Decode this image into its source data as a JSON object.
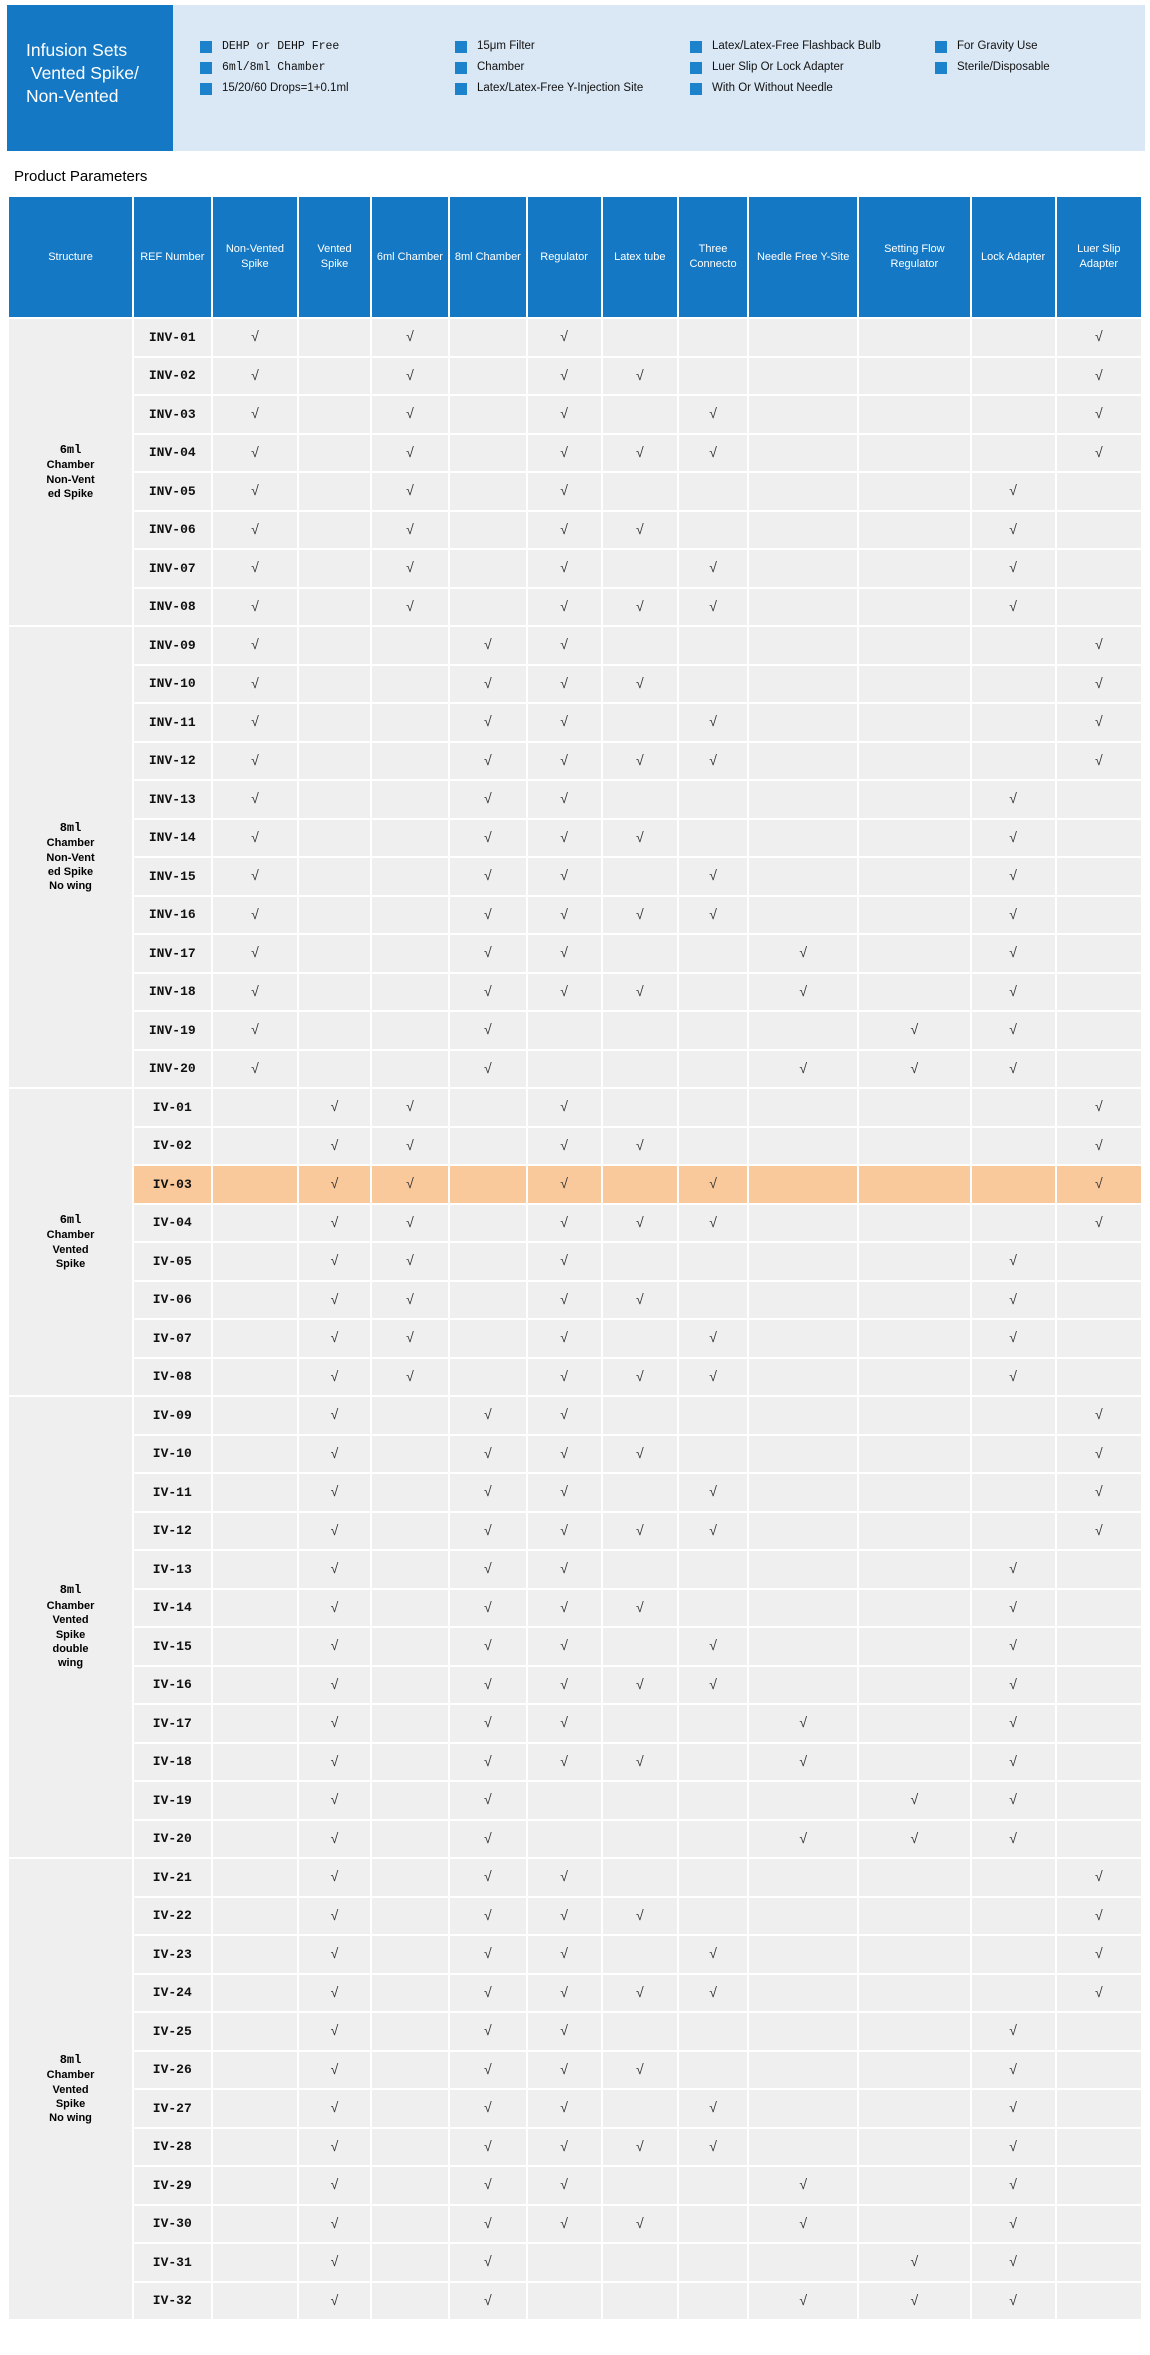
{
  "banner": {
    "title_lines": [
      "Infusion Sets",
      " Vented Spike/",
      "Non-Vented"
    ],
    "feature_columns": [
      [
        {
          "text": "DEHP or DEHP Free",
          "mono": true
        },
        {
          "text": "6ml/8ml Chamber",
          "mono": true
        },
        {
          "text": "15/20/60 Drops=1+0.1ml",
          "mono": false
        }
      ],
      [
        {
          "text": "15μm Filter",
          "mono": false
        },
        {
          "text": "Chamber",
          "mono": false
        },
        {
          "text": "Latex/Latex-Free Y-Injection Site",
          "mono": false
        }
      ],
      [
        {
          "text": "Latex/Latex-Free Flashback Bulb",
          "mono": false
        },
        {
          "text": "Luer Slip Or Lock Adapter",
          "mono": false
        },
        {
          "text": "With Or Without Needle",
          "mono": false
        }
      ],
      [
        {
          "text": "For Gravity Use",
          "mono": false
        },
        {
          "text": "Sterile/Disposable",
          "mono": false
        }
      ]
    ]
  },
  "page": {
    "heading": "Product Parameters"
  },
  "colors": {
    "banner_blue": "#1478C4",
    "panel_blue": "#DAE7F4",
    "bullet_blue": "#1C82CC",
    "row_gray": "#F0EFEF",
    "highlight_orange": "#F9C89B"
  },
  "table": {
    "check_glyph": "√",
    "columns": [
      {
        "key": "structure",
        "label": "Structure"
      },
      {
        "key": "ref",
        "label": "REF Number"
      },
      {
        "key": "nv",
        "label": "Non-Vented Spike"
      },
      {
        "key": "v",
        "label": "Vented Spike"
      },
      {
        "key": "c6",
        "label": "6ml Chamber"
      },
      {
        "key": "c8",
        "label": "8ml Chamber"
      },
      {
        "key": "reg",
        "label": "Regulator"
      },
      {
        "key": "lat",
        "label": "Latex tube"
      },
      {
        "key": "thr",
        "label": "Three Connecto"
      },
      {
        "key": "nfy",
        "label": "Needle Free Y-Site"
      },
      {
        "key": "sfr",
        "label": "Setting Flow Regulator"
      },
      {
        "key": "lock",
        "label": "Lock Adapter"
      },
      {
        "key": "luer",
        "label": "Luer Slip Adapter"
      }
    ],
    "feature_keys": [
      "nv",
      "v",
      "c6",
      "c8",
      "reg",
      "lat",
      "thr",
      "nfy",
      "sfr",
      "lock",
      "luer"
    ],
    "sections": [
      {
        "structure_lines": [
          "6ml",
          "Chamber",
          "Non-Vent",
          "ed Spike"
        ],
        "rows": [
          {
            "ref": "INV-01",
            "checks": [
              "nv",
              "c6",
              "reg",
              "luer"
            ]
          },
          {
            "ref": "INV-02",
            "checks": [
              "nv",
              "c6",
              "reg",
              "lat",
              "luer"
            ]
          },
          {
            "ref": "INV-03",
            "checks": [
              "nv",
              "c6",
              "reg",
              "thr",
              "luer"
            ]
          },
          {
            "ref": "INV-04",
            "checks": [
              "nv",
              "c6",
              "reg",
              "lat",
              "thr",
              "luer"
            ]
          },
          {
            "ref": "INV-05",
            "checks": [
              "nv",
              "c6",
              "reg",
              "lock"
            ]
          },
          {
            "ref": "INV-06",
            "checks": [
              "nv",
              "c6",
              "reg",
              "lat",
              "lock"
            ]
          },
          {
            "ref": "INV-07",
            "checks": [
              "nv",
              "c6",
              "reg",
              "thr",
              "lock"
            ]
          },
          {
            "ref": "INV-08",
            "checks": [
              "nv",
              "c6",
              "reg",
              "lat",
              "thr",
              "lock"
            ]
          }
        ]
      },
      {
        "structure_lines": [
          "8ml",
          "Chamber",
          "Non-Vent",
          "ed Spike",
          "No wing"
        ],
        "rows": [
          {
            "ref": "INV-09",
            "checks": [
              "nv",
              "c8",
              "reg",
              "luer"
            ]
          },
          {
            "ref": "INV-10",
            "checks": [
              "nv",
              "c8",
              "reg",
              "lat",
              "luer"
            ]
          },
          {
            "ref": "INV-11",
            "checks": [
              "nv",
              "c8",
              "reg",
              "thr",
              "luer"
            ]
          },
          {
            "ref": "INV-12",
            "checks": [
              "nv",
              "c8",
              "reg",
              "lat",
              "thr",
              "luer"
            ]
          },
          {
            "ref": "INV-13",
            "checks": [
              "nv",
              "c8",
              "reg",
              "lock"
            ]
          },
          {
            "ref": "INV-14",
            "checks": [
              "nv",
              "c8",
              "reg",
              "lat",
              "lock"
            ]
          },
          {
            "ref": "INV-15",
            "checks": [
              "nv",
              "c8",
              "reg",
              "thr",
              "lock"
            ]
          },
          {
            "ref": "INV-16",
            "checks": [
              "nv",
              "c8",
              "reg",
              "lat",
              "thr",
              "lock"
            ]
          },
          {
            "ref": "INV-17",
            "checks": [
              "nv",
              "c8",
              "reg",
              "nfy",
              "lock"
            ]
          },
          {
            "ref": "INV-18",
            "checks": [
              "nv",
              "c8",
              "reg",
              "lat",
              "nfy",
              "lock"
            ]
          },
          {
            "ref": "INV-19",
            "checks": [
              "nv",
              "c8",
              "sfr",
              "lock"
            ]
          },
          {
            "ref": "INV-20",
            "checks": [
              "nv",
              "c8",
              "nfy",
              "sfr",
              "lock"
            ]
          }
        ]
      },
      {
        "structure_lines": [
          "6ml",
          "Chamber",
          "Vented",
          "Spike"
        ],
        "rows": [
          {
            "ref": "IV-01",
            "checks": [
              "v",
              "c6",
              "reg",
              "luer"
            ]
          },
          {
            "ref": "IV-02",
            "checks": [
              "v",
              "c6",
              "reg",
              "lat",
              "luer"
            ]
          },
          {
            "ref": "IV-03",
            "checks": [
              "v",
              "c6",
              "reg",
              "thr",
              "luer"
            ],
            "highlight": true
          },
          {
            "ref": "IV-04",
            "checks": [
              "v",
              "c6",
              "reg",
              "lat",
              "thr",
              "luer"
            ]
          },
          {
            "ref": "IV-05",
            "checks": [
              "v",
              "c6",
              "reg",
              "lock"
            ]
          },
          {
            "ref": "IV-06",
            "checks": [
              "v",
              "c6",
              "reg",
              "lat",
              "lock"
            ]
          },
          {
            "ref": "IV-07",
            "checks": [
              "v",
              "c6",
              "reg",
              "thr",
              "lock"
            ]
          },
          {
            "ref": "IV-08",
            "checks": [
              "v",
              "c6",
              "reg",
              "lat",
              "thr",
              "lock"
            ]
          }
        ]
      },
      {
        "structure_lines": [
          "8ml",
          "Chamber",
          "Vented",
          "Spike",
          "double",
          "wing"
        ],
        "rows": [
          {
            "ref": "IV-09",
            "checks": [
              "v",
              "c8",
              "reg",
              "luer"
            ]
          },
          {
            "ref": "IV-10",
            "checks": [
              "v",
              "c8",
              "reg",
              "lat",
              "luer"
            ]
          },
          {
            "ref": "IV-11",
            "checks": [
              "v",
              "c8",
              "reg",
              "thr",
              "luer"
            ]
          },
          {
            "ref": "IV-12",
            "checks": [
              "v",
              "c8",
              "reg",
              "lat",
              "thr",
              "luer"
            ]
          },
          {
            "ref": "IV-13",
            "checks": [
              "v",
              "c8",
              "reg",
              "lock"
            ]
          },
          {
            "ref": "IV-14",
            "checks": [
              "v",
              "c8",
              "reg",
              "lat",
              "lock"
            ]
          },
          {
            "ref": "IV-15",
            "checks": [
              "v",
              "c8",
              "reg",
              "thr",
              "lock"
            ]
          },
          {
            "ref": "IV-16",
            "checks": [
              "v",
              "c8",
              "reg",
              "lat",
              "thr",
              "lock"
            ]
          },
          {
            "ref": "IV-17",
            "checks": [
              "v",
              "c8",
              "reg",
              "nfy",
              "lock"
            ]
          },
          {
            "ref": "IV-18",
            "checks": [
              "v",
              "c8",
              "reg",
              "lat",
              "nfy",
              "lock"
            ]
          },
          {
            "ref": "IV-19",
            "checks": [
              "v",
              "c8",
              "sfr",
              "lock"
            ]
          },
          {
            "ref": "IV-20",
            "checks": [
              "v",
              "c8",
              "nfy",
              "sfr",
              "lock"
            ]
          }
        ]
      },
      {
        "structure_lines": [
          "8ml",
          "Chamber",
          "Vented",
          "Spike",
          "No wing"
        ],
        "rows": [
          {
            "ref": "IV-21",
            "checks": [
              "v",
              "c8",
              "reg",
              "luer"
            ]
          },
          {
            "ref": "IV-22",
            "checks": [
              "v",
              "c8",
              "reg",
              "lat",
              "luer"
            ]
          },
          {
            "ref": "IV-23",
            "checks": [
              "v",
              "c8",
              "reg",
              "thr",
              "luer"
            ]
          },
          {
            "ref": "IV-24",
            "checks": [
              "v",
              "c8",
              "reg",
              "lat",
              "thr",
              "luer"
            ]
          },
          {
            "ref": "IV-25",
            "checks": [
              "v",
              "c8",
              "reg",
              "lock"
            ]
          },
          {
            "ref": "IV-26",
            "checks": [
              "v",
              "c8",
              "reg",
              "lat",
              "lock"
            ]
          },
          {
            "ref": "IV-27",
            "checks": [
              "v",
              "c8",
              "reg",
              "thr",
              "lock"
            ]
          },
          {
            "ref": "IV-28",
            "checks": [
              "v",
              "c8",
              "reg",
              "lat",
              "thr",
              "lock"
            ]
          },
          {
            "ref": "IV-29",
            "checks": [
              "v",
              "c8",
              "reg",
              "nfy",
              "lock"
            ]
          },
          {
            "ref": "IV-30",
            "checks": [
              "v",
              "c8",
              "reg",
              "lat",
              "nfy",
              "lock"
            ]
          },
          {
            "ref": "IV-31",
            "checks": [
              "v",
              "c8",
              "sfr",
              "lock"
            ]
          },
          {
            "ref": "IV-32",
            "checks": [
              "v",
              "c8",
              "nfy",
              "sfr",
              "lock"
            ]
          }
        ]
      }
    ]
  }
}
